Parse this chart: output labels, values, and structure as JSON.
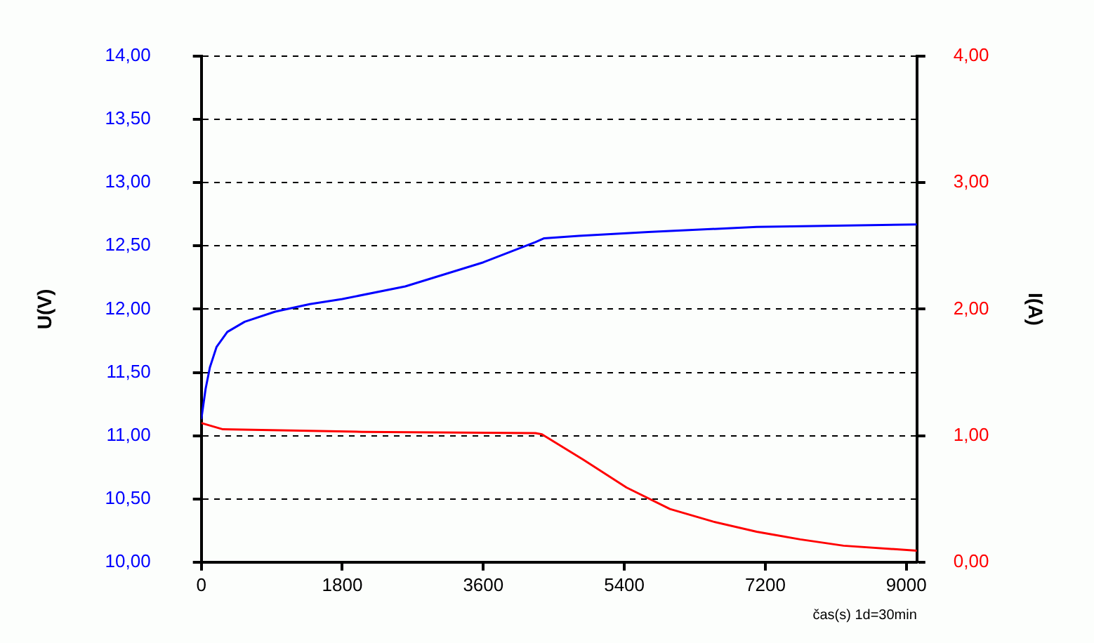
{
  "chart_data": {
    "type": "line",
    "xlabel": "čas(s) 1d=30min",
    "ylabel": "U(V)",
    "y2label": "I(A)",
    "xlim": [
      0,
      9135
    ],
    "xticks": [
      0,
      1800,
      3600,
      5400,
      7200,
      9000
    ],
    "ylim": [
      10,
      14
    ],
    "yticks": [
      {
        "value": 10,
        "label": "10,00"
      },
      {
        "value": 10.5,
        "label": "10,50"
      },
      {
        "value": 11,
        "label": "11,00"
      },
      {
        "value": 11.5,
        "label": "11,50"
      },
      {
        "value": 12,
        "label": "12,00"
      },
      {
        "value": 12.5,
        "label": "12,50"
      },
      {
        "value": 13,
        "label": "13,00"
      },
      {
        "value": 13.5,
        "label": "13,50"
      },
      {
        "value": 14,
        "label": "14,00"
      }
    ],
    "y2lim": [
      0,
      4
    ],
    "y2ticks": [
      {
        "value": 0,
        "label": "0,00"
      },
      {
        "value": 1,
        "label": "1,00"
      },
      {
        "value": 2,
        "label": "2,00"
      },
      {
        "value": 3,
        "label": "3,00"
      },
      {
        "value": 4,
        "label": "4,00"
      }
    ],
    "grid": "y",
    "legend": false,
    "marker": "none",
    "line_style": "solid",
    "series": [
      {
        "color": "#0000ff",
        "x": [
          0,
          55,
          110,
          194,
          332,
          554,
          942,
          1385,
          1800,
          2604,
          3600,
          4266,
          4377,
          4820,
          5706,
          7090,
          9135
        ],
        "values": [
          11.13,
          11.37,
          11.54,
          11.7,
          11.82,
          11.9,
          11.98,
          12.04,
          12.08,
          12.18,
          12.37,
          12.53,
          12.56,
          12.58,
          12.61,
          12.65,
          12.67
        ]
      },
      {
        "color": "#ff0000",
        "axis": "y2",
        "x": [
          0,
          277,
          2050,
          4266,
          4349,
          4875,
          5428,
          5983,
          6537,
          7090,
          7645,
          8199,
          9135
        ],
        "values": [
          1.1,
          1.05,
          1.03,
          1.02,
          1.01,
          0.81,
          0.59,
          0.42,
          0.32,
          0.24,
          0.18,
          0.13,
          0.09
        ]
      }
    ]
  }
}
